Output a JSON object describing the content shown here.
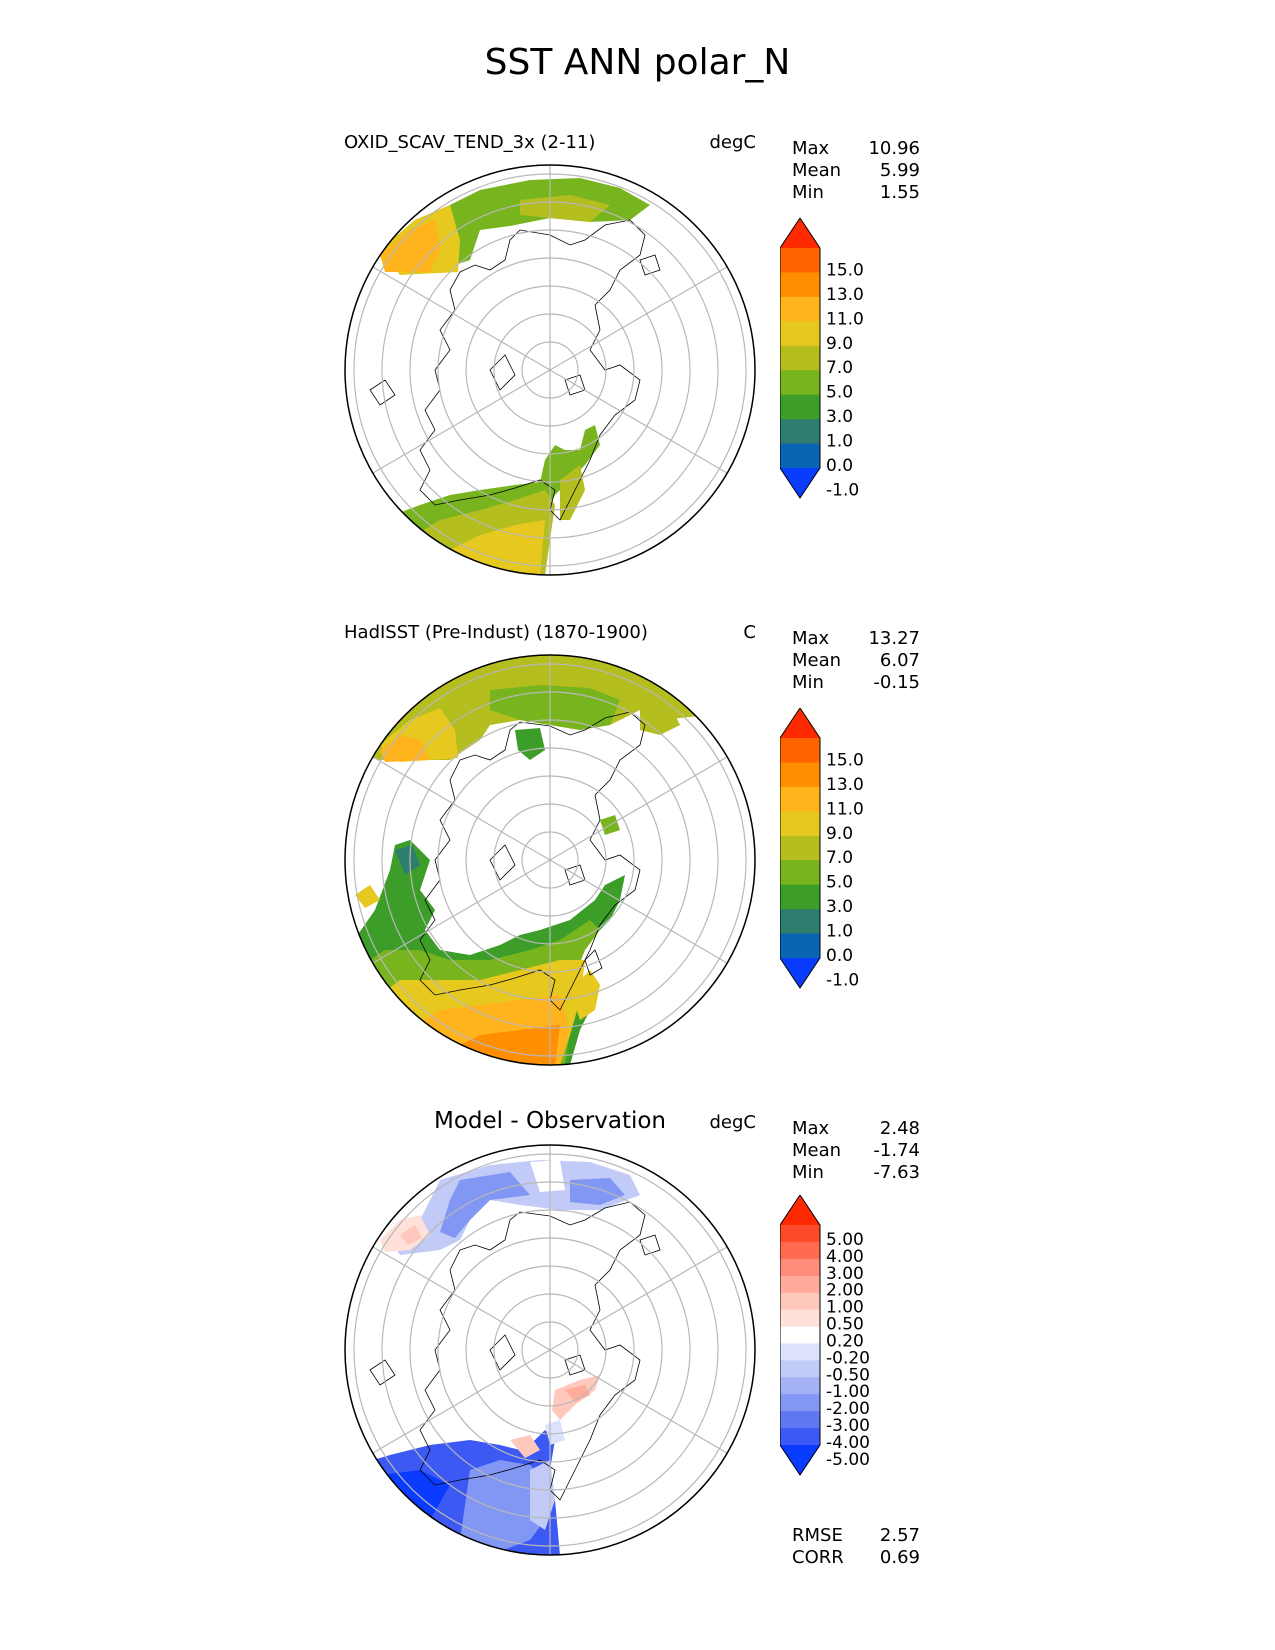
{
  "title": "SST ANN polar_N",
  "panels": [
    {
      "title": "OXID_SCAV_TEND_3x (2-11)",
      "units": "degC",
      "stats": [
        {
          "label": "Max",
          "value": "10.96"
        },
        {
          "label": "Mean",
          "value": "5.99"
        },
        {
          "label": "Min",
          "value": "1.55"
        }
      ],
      "colorbar": {
        "labels": [
          "15.0",
          "13.0",
          "11.0",
          "9.0",
          "7.0",
          "5.0",
          "3.0",
          "1.0",
          "0.0",
          "-1.0"
        ],
        "colors": [
          "#ff2a00",
          "#ff6400",
          "#ff8f00",
          "#ffb41e",
          "#e6c81e",
          "#b4be1e",
          "#78b41e",
          "#3c9e28",
          "#2e7d6e",
          "#0a64b4",
          "#0a3cff"
        ]
      }
    },
    {
      "title": "HadISST (Pre-Indust) (1870-1900)",
      "units": "C",
      "stats": [
        {
          "label": "Max",
          "value": "13.27"
        },
        {
          "label": "Mean",
          "value": "6.07"
        },
        {
          "label": "Min",
          "value": "-0.15"
        }
      ],
      "colorbar": {
        "labels": [
          "15.0",
          "13.0",
          "11.0",
          "9.0",
          "7.0",
          "5.0",
          "3.0",
          "1.0",
          "0.0",
          "-1.0"
        ],
        "colors": [
          "#ff2a00",
          "#ff6400",
          "#ff8f00",
          "#ffb41e",
          "#e6c81e",
          "#b4be1e",
          "#78b41e",
          "#3c9e28",
          "#2e7d6e",
          "#0a64b4",
          "#0a3cff"
        ]
      }
    },
    {
      "title": "Model - Observation",
      "units": "degC",
      "stats": [
        {
          "label": "Max",
          "value": "2.48"
        },
        {
          "label": "Mean",
          "value": "-1.74"
        },
        {
          "label": "Min",
          "value": "-7.63"
        }
      ],
      "colorbar": {
        "labels": [
          "5.00",
          "4.00",
          "3.00",
          "2.00",
          "1.00",
          "0.50",
          "0.20",
          "-0.20",
          "-0.50",
          "-1.00",
          "-2.00",
          "-3.00",
          "-4.00",
          "-5.00"
        ],
        "colors": [
          "#ff2a00",
          "#ff4a2a",
          "#ff6a50",
          "#ff8c78",
          "#ffaa9a",
          "#ffc8bc",
          "#ffe1da",
          "#ffffff",
          "#dce2fb",
          "#c2cbf8",
          "#a3b2f5",
          "#8296f3",
          "#5f78f2",
          "#3c59f4",
          "#0a3cff"
        ]
      },
      "extra_stats": [
        {
          "label": "RMSE",
          "value": "2.57"
        },
        {
          "label": "CORR",
          "value": "0.69"
        }
      ]
    }
  ]
}
